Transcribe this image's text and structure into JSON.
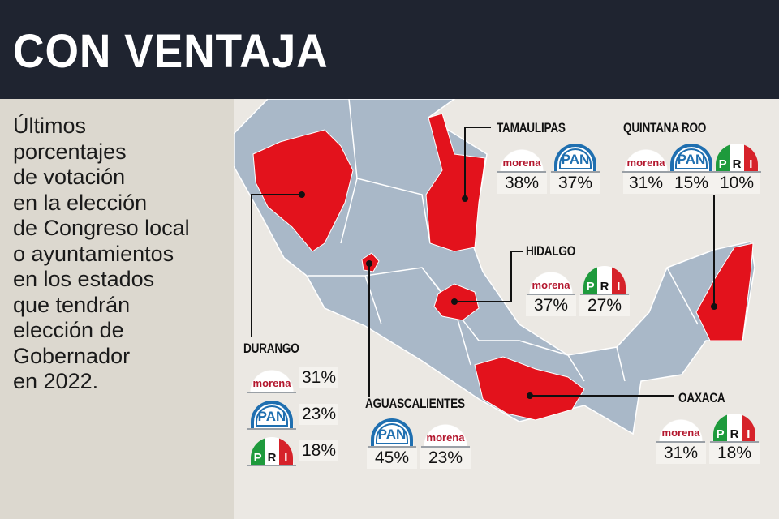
{
  "header": {
    "title": "CON VENTAJA"
  },
  "sidebar": {
    "text": "Últimos\nporcentajes\nde votación\nen la elección\nde Congreso local\no ayuntamientos\nen los estados\nque tendrán\nelección de\nGobernador\nen 2022."
  },
  "logos": {
    "morena": "morena",
    "pan": "PAN",
    "pri_p": "P",
    "pri_r": "R",
    "pri_i": "I"
  },
  "colors": {
    "header": "#1f2430",
    "state": "#a9b8c8",
    "highlight": "#e3121c",
    "morena": "#b3172e",
    "pan": "#1f6fb0",
    "pri_green": "#1e9a3c",
    "pri_red": "#d6222a"
  },
  "states": {
    "tamaulipas": {
      "name": "TAMAULIPAS",
      "results": [
        {
          "party": "morena",
          "pct": "38%"
        },
        {
          "party": "PAN",
          "pct": "37%"
        }
      ]
    },
    "quintana_roo": {
      "name": "QUINTANA ROO",
      "results": [
        {
          "party": "morena",
          "pct": "31%"
        },
        {
          "party": "PAN",
          "pct": "15%"
        },
        {
          "party": "PRI",
          "pct": "10%"
        }
      ]
    },
    "hidalgo": {
      "name": "HIDALGO",
      "results": [
        {
          "party": "morena",
          "pct": "37%"
        },
        {
          "party": "PRI",
          "pct": "27%"
        }
      ]
    },
    "durango": {
      "name": "DURANGO",
      "results": [
        {
          "party": "morena",
          "pct": "31%"
        },
        {
          "party": "PAN",
          "pct": "23%"
        },
        {
          "party": "PRI",
          "pct": "18%"
        }
      ]
    },
    "aguascalientes": {
      "name": "AGUASCALIENTES",
      "results": [
        {
          "party": "PAN",
          "pct": "45%"
        },
        {
          "party": "morena",
          "pct": "23%"
        }
      ]
    },
    "oaxaca": {
      "name": "OAXACA",
      "results": [
        {
          "party": "morena",
          "pct": "31%"
        },
        {
          "party": "PRI",
          "pct": "18%"
        }
      ]
    }
  }
}
